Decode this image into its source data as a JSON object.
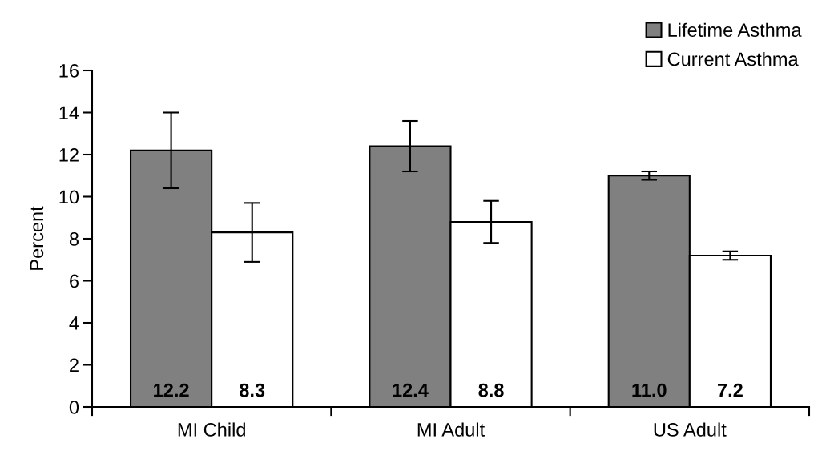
{
  "chart_data": {
    "type": "bar",
    "ylabel": "Percent",
    "categories": [
      "MI Child",
      "MI Adult",
      "US Adult"
    ],
    "series": [
      {
        "name": "Lifetime Asthma",
        "color": "#808080",
        "values": [
          12.2,
          12.4,
          11.0
        ],
        "errors": [
          1.8,
          1.2,
          0.2
        ],
        "value_labels": [
          "12.2",
          "12.4",
          "11.0"
        ]
      },
      {
        "name": "Current Asthma",
        "color": "#ffffff",
        "values": [
          8.3,
          8.8,
          7.2
        ],
        "errors": [
          1.4,
          1.0,
          0.2
        ],
        "value_labels": [
          "8.3",
          "8.8",
          "7.2"
        ]
      }
    ],
    "ylim": [
      0,
      16
    ],
    "yticks": [
      0,
      2,
      4,
      6,
      8,
      10,
      12,
      14,
      16
    ],
    "grid": false,
    "legend": "top right"
  }
}
